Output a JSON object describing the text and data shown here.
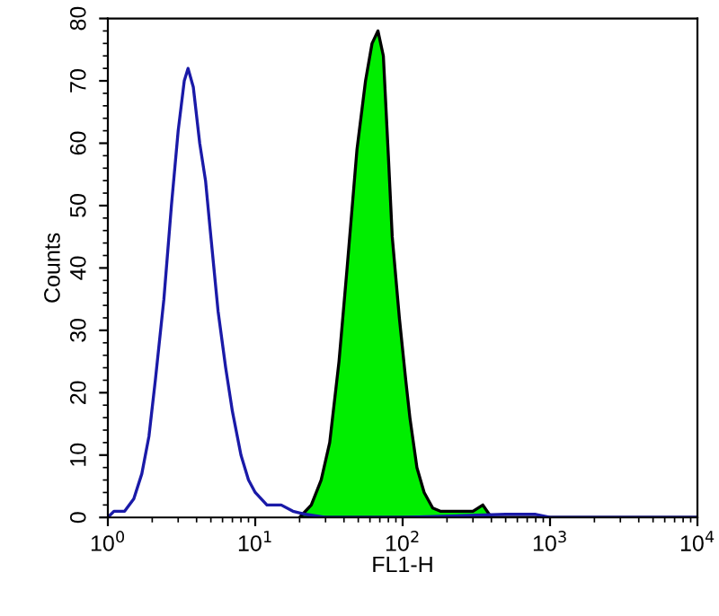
{
  "chart_data": {
    "type": "area",
    "xlabel": "FL1-H",
    "ylabel": "Counts",
    "log": "x",
    "xlim": [
      1,
      10000
    ],
    "xticks": [
      {
        "value": 1,
        "label": "10$^{0}$"
      },
      {
        "value": 10,
        "label": "10$^{1}$"
      },
      {
        "value": 100,
        "label": "10$^{2}$"
      },
      {
        "value": 1000,
        "label": "10$^{3}$"
      },
      {
        "value": 10000,
        "label": "10$^{4}$"
      }
    ],
    "ylim": [
      0,
      80
    ],
    "yticks": [
      0,
      10,
      20,
      30,
      40,
      50,
      60,
      70,
      80
    ],
    "grid": false,
    "series": [
      {
        "type": "line",
        "color": "#1a1aa8",
        "x": [
          1.0,
          1.1,
          1.3,
          1.5,
          1.7,
          1.9,
          2.1,
          2.4,
          2.7,
          3.0,
          3.3,
          3.5,
          3.8,
          4.2,
          4.6,
          5.0,
          5.6,
          6.3,
          7.0,
          8.0,
          9.0,
          10,
          12,
          15,
          18,
          22,
          30,
          100,
          500,
          800,
          1000,
          10000
        ],
        "values": [
          0,
          1,
          1,
          3,
          7,
          13,
          22,
          35,
          50,
          62,
          70,
          72,
          69,
          60,
          54,
          45,
          33,
          24,
          17,
          10,
          6,
          4,
          2,
          2,
          1,
          0.5,
          0,
          0,
          0.5,
          0.5,
          0,
          0
        ]
      },
      {
        "color": "#00ee00",
        "x": [
          20,
          24,
          28,
          32,
          37,
          42,
          49,
          56,
          62,
          68,
          74,
          80,
          85,
          95,
          105,
          112,
          125,
          140,
          160,
          180,
          300,
          350,
          400,
          10000
        ],
        "values": [
          0,
          2,
          6,
          12,
          25,
          40,
          59,
          70,
          76,
          78,
          74,
          58,
          45,
          32,
          22,
          16,
          8,
          4,
          1.5,
          1,
          1,
          2,
          0,
          0
        ]
      }
    ]
  }
}
